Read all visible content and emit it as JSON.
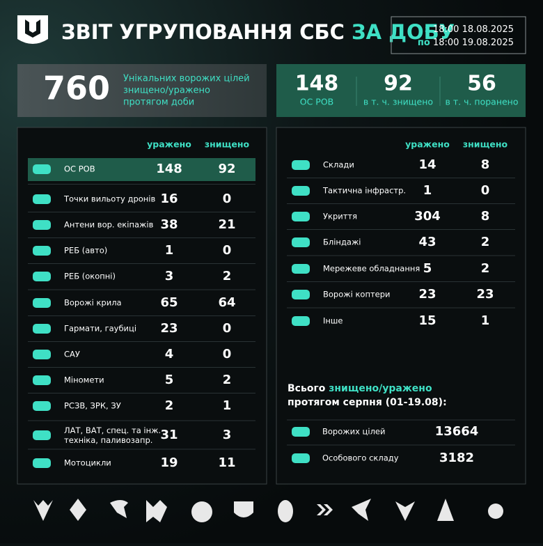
{
  "header": {
    "title": "ЗВІТ УГРУПОВАННЯ СБС",
    "title_highlight": "ЗА ДОБУ",
    "period": {
      "from_label": "з",
      "from_time": "18:00",
      "from_date": "18.08.2025",
      "to_label": "по",
      "to_time": "18:00",
      "to_date": "19.08.2025"
    }
  },
  "summary": {
    "total": "760",
    "total_text": [
      "Унікальних ворожих цілей",
      "знищено/уражено",
      "протягом доби"
    ],
    "personnel": [
      {
        "value": "148",
        "label": "ОС РОВ"
      },
      {
        "value": "92",
        "label": "в т. ч. знищено"
      },
      {
        "value": "56",
        "label": "в т. ч. поранено"
      }
    ]
  },
  "left_table": {
    "columns": [
      "уражено",
      "знищено"
    ],
    "rows": [
      {
        "label": "ОС РОВ",
        "hit": "148",
        "destroyed": "92"
      },
      {
        "label": "Точки вильоту дронів",
        "hit": "16",
        "destroyed": "0"
      },
      {
        "label": "Антени вор. екіпажів",
        "hit": "38",
        "destroyed": "21"
      },
      {
        "label": "РЕБ (авто)",
        "hit": "1",
        "destroyed": "0"
      },
      {
        "label": "РЕБ (окопні)",
        "hit": "3",
        "destroyed": "2"
      },
      {
        "label": "Ворожі крила",
        "hit": "65",
        "destroyed": "64"
      },
      {
        "label": "Гармати, гаубиці",
        "hit": "23",
        "destroyed": "0"
      },
      {
        "label": "САУ",
        "hit": "4",
        "destroyed": "0"
      },
      {
        "label": "Міномети",
        "hit": "5",
        "destroyed": "2"
      },
      {
        "label": "РСЗВ, ЗРК, ЗУ",
        "hit": "2",
        "destroyed": "1"
      },
      {
        "label": "ЛАТ, ВАТ, спец. та інж. техніка, паливозапр.",
        "hit": "31",
        "destroyed": "3"
      },
      {
        "label": "Мотоцикли",
        "hit": "19",
        "destroyed": "11"
      }
    ]
  },
  "right_table": {
    "columns": [
      "уражено",
      "знищено"
    ],
    "rows": [
      {
        "label": "Склади",
        "hit": "14",
        "destroyed": "8"
      },
      {
        "label": "Тактична інфрастр.",
        "hit": "1",
        "destroyed": "0"
      },
      {
        "label": "Укриття",
        "hit": "304",
        "destroyed": "8"
      },
      {
        "label": "Бліндажі",
        "hit": "43",
        "destroyed": "2"
      },
      {
        "label": "Мережеве обладнання",
        "hit": "5",
        "destroyed": "2"
      },
      {
        "label": "Ворожі коптери",
        "hit": "23",
        "destroyed": "23"
      },
      {
        "label": "Інше",
        "hit": "15",
        "destroyed": "1"
      }
    ]
  },
  "month": {
    "title_start": "Всього",
    "title_highlight": "знищено/уражено",
    "title_end": "протягом серпня (01-19.08):",
    "rows": [
      {
        "label": "Ворожих цілей",
        "value": "13664"
      },
      {
        "label": "Особового складу",
        "value": "3182"
      }
    ]
  }
}
